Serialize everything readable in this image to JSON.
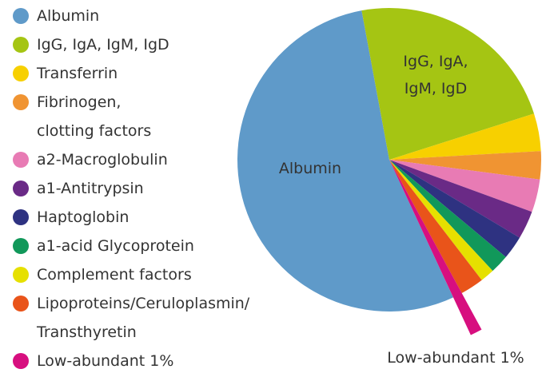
{
  "chart_data": {
    "type": "pie",
    "categories": [
      "Albumin",
      "IgG, IgA, IgM, IgD",
      "Transferrin",
      "Fibrinogen,\nclotting factors",
      "a2-Macroglobulin",
      "a1-Antitrypsin",
      "Haptoglobin",
      "a1-acid Glycoprotein",
      "Complement factors",
      "Lipoproteins/Ceruloplasmin/\nTransthyretin",
      "Low-abundant 1%"
    ],
    "values": [
      54,
      23,
      4,
      3,
      3.5,
      3,
      2.5,
      2,
      1.5,
      2.5,
      1
    ],
    "colors": [
      "#5f9ac9",
      "#a5c513",
      "#f7d000",
      "#f09432",
      "#e87bb4",
      "#6a2a86",
      "#2e3281",
      "#11985a",
      "#e6e000",
      "#e9541a",
      "#d70f7f"
    ],
    "legend": "left"
  }
}
